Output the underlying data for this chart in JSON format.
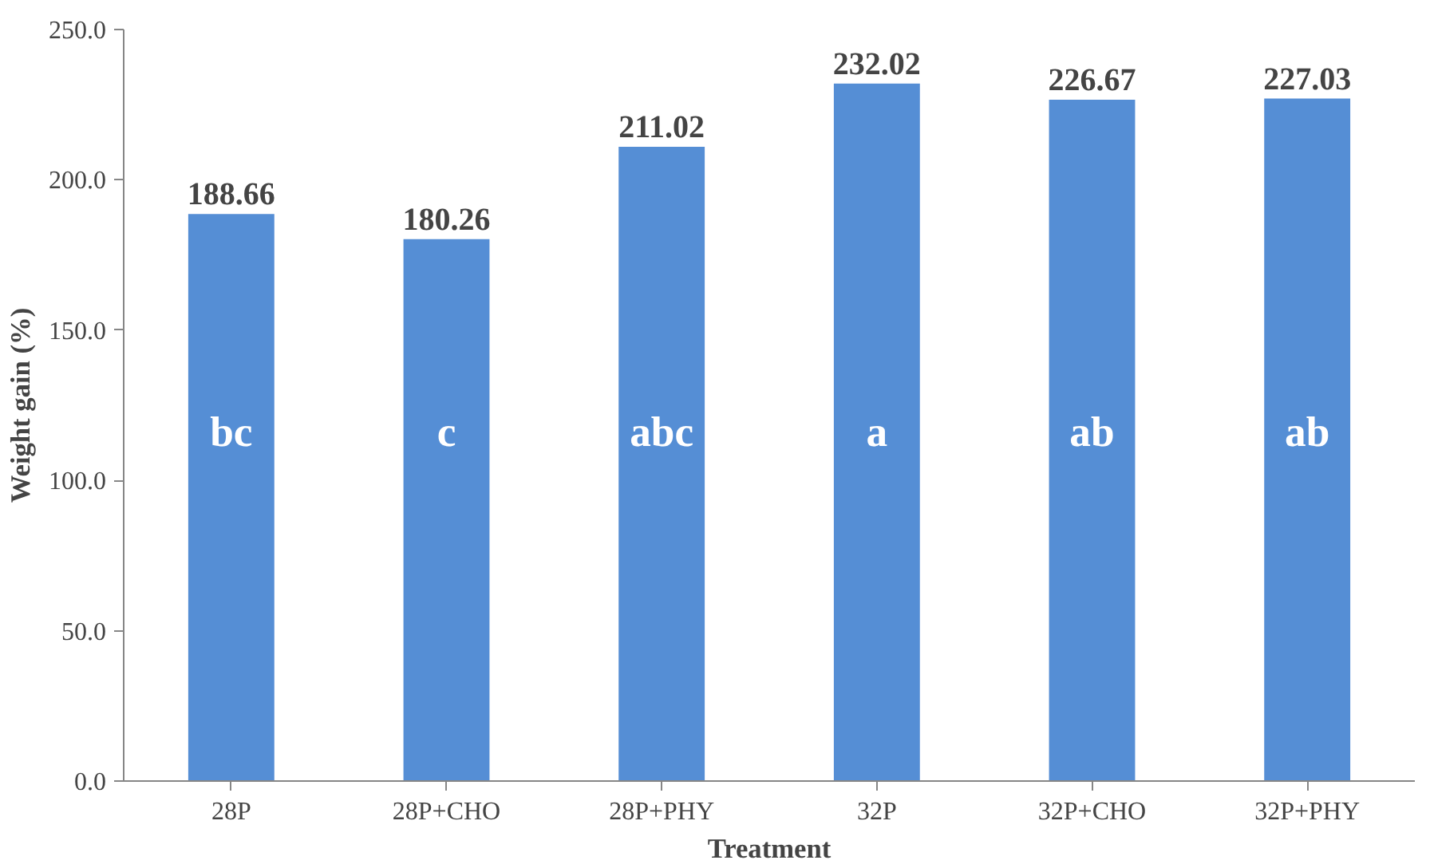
{
  "chart_data": {
    "type": "bar",
    "xlabel": "Treatment",
    "ylabel": "Weight gain (%)",
    "categories": [
      "28P",
      "28P+CHO",
      "28P+PHY",
      "32P",
      "32P+CHO",
      "32P+PHY"
    ],
    "values": [
      188.66,
      180.26,
      211.02,
      232.02,
      226.67,
      227.03
    ],
    "color": "#558ed5",
    "data_labels": true,
    "ylim": [
      0,
      250
    ],
    "yticks": [
      {
        "value": 0,
        "label": "0.0"
      },
      {
        "value": 50,
        "label": "50.0"
      },
      {
        "value": 100,
        "label": "100.0"
      },
      {
        "value": 150,
        "label": "150.0"
      },
      {
        "value": 200,
        "label": "200.0"
      },
      {
        "value": 250,
        "label": "250.0"
      }
    ],
    "grid": false,
    "annotations": [
      "bc",
      "c",
      "abc",
      "a",
      "ab",
      "ab"
    ]
  }
}
